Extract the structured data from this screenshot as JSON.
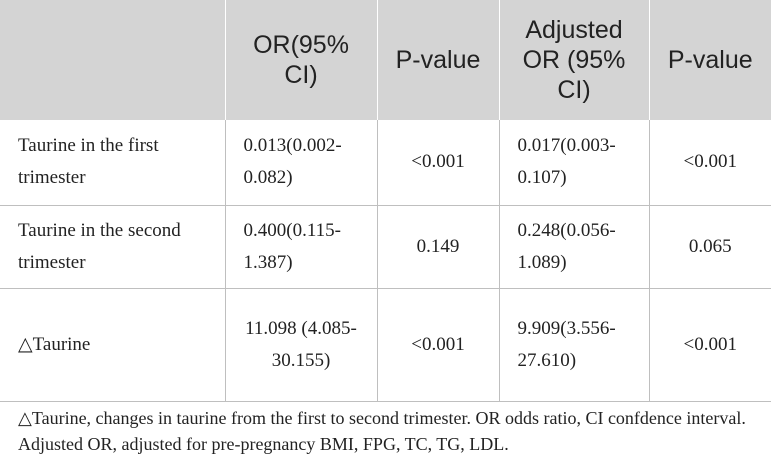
{
  "table": {
    "headers": [
      "",
      "OR(95% CI)",
      "P-value",
      "Adjusted OR (95% CI)",
      "P-value"
    ],
    "rows": [
      {
        "label": "Taurine in the first trimester",
        "or_ci": "0.013(0.002-0.082)",
        "p": "<0.001",
        "adj_or_ci": "0.017(0.003-0.107)",
        "adj_p": "<0.001"
      },
      {
        "label": "Taurine in the second trimester",
        "or_ci": "0.400(0.115-1.387)",
        "p": "0.149",
        "adj_or_ci": "0.248(0.056-1.089)",
        "adj_p": "0.065"
      },
      {
        "label": "△Taurine",
        "or_ci": "11.098 (4.085-30.155)",
        "p": "<0.001",
        "adj_or_ci": "9.909(3.556-27.610)",
        "adj_p": "<0.001"
      }
    ]
  },
  "footnote": "△Taurine, changes in taurine from the first to second trimester. OR odds ratio, CI confdence interval. Adjusted OR, adjusted for pre-pregnancy BMI, FPG, TC, TG, LDL."
}
